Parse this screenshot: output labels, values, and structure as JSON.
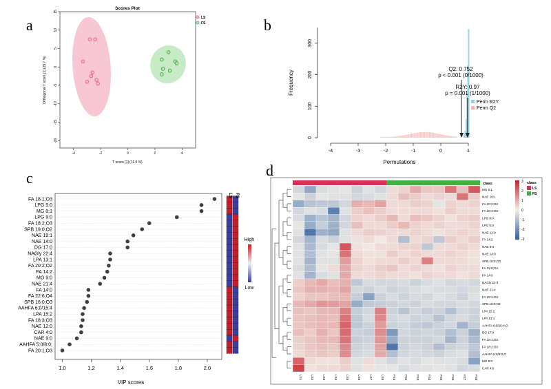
{
  "panel_labels": [
    "a",
    "b",
    "c",
    "d"
  ],
  "chart_data": [
    {
      "type": "scatter",
      "panel": "a",
      "title": "Scores Plot",
      "xlabel": "T score [1] (11.9 %)",
      "ylabel": "Orthogonal T score [1] (29.7 %)",
      "xlim": [
        -5,
        5
      ],
      "ylim": [
        -22,
        15
      ],
      "xticks": [
        "-4",
        "-2",
        "0",
        "2",
        "4"
      ],
      "yticks": [
        "-20",
        "-15",
        "-10",
        "-5",
        "0",
        "5",
        "10",
        "15"
      ],
      "legend": [
        "LS",
        "FS"
      ],
      "series": [
        {
          "name": "LS",
          "color": "#e05a7a",
          "fill": "#f4b6c4",
          "points": [
            [
              -2.4,
              7.5
            ],
            [
              -2.8,
              7.5
            ],
            [
              -3.3,
              1.5
            ],
            [
              -2.6,
              -1.5
            ],
            [
              -2.7,
              -2.5
            ],
            [
              -3.0,
              -4.0
            ],
            [
              -2.3,
              -3.5
            ],
            [
              -2.2,
              -4.5
            ]
          ]
        },
        {
          "name": "FS",
          "color": "#3a9a3a",
          "fill": "#b4e4b4",
          "points": [
            [
              3.0,
              4.0
            ],
            [
              2.5,
              2.0
            ],
            [
              3.5,
              1.5
            ],
            [
              2.6,
              -0.5
            ],
            [
              2.5,
              -2.0
            ],
            [
              3.1,
              -1.0
            ],
            [
              3.6,
              1.0
            ]
          ]
        }
      ]
    },
    {
      "type": "histogram",
      "panel": "b",
      "xlabel": "Permutations",
      "ylabel": "Frequency",
      "xlim": [
        -4,
        1
      ],
      "ylim": [
        0,
        350
      ],
      "xticks": [
        "-4",
        "-3",
        "-2",
        "-1",
        "0",
        "1"
      ],
      "yticks": [
        "0",
        "100",
        "200",
        "300"
      ],
      "annotations": [
        "Q2: 0.752",
        "p < 0.001 (0/1000)",
        "R2Y: 0.97",
        "p = 0.001 (1/1000)"
      ],
      "q2_value": 0.752,
      "r2y_value": 0.97,
      "legend": [
        "Perm R2Y",
        "Perm Q2"
      ]
    },
    {
      "type": "dot",
      "panel": "c",
      "xlabel": "VIP scores",
      "xlim": [
        0.95,
        2.1
      ],
      "xticks": [
        "1.0",
        "1.2",
        "1.4",
        "1.6",
        "1.8",
        "2.0"
      ],
      "features": [
        "FA 18:1;O3",
        "LPG 5:0",
        "MG 8:1",
        "LPG 9:0",
        "FA 18:2;O3",
        "SPB 19:0;O2",
        "NAE 19:1",
        "NAE 14:0",
        "DG 17:0",
        "NAGly 22:4",
        "LPA 13:1",
        "FA 20:2;O2",
        "FA 14:2",
        "MG 9:0",
        "NAE 21:4",
        "FA 14:0",
        "FA 22:6;O4",
        "SPB 16:0;O3",
        "AAHFA 6:0/15:4",
        "LPA 15:2",
        "FA 18:3;O3",
        "NAE 12:0",
        "CAR 4:0",
        "NAE 9:0",
        "AAHFA 5:0/8:0;",
        "FA 20:1;O3"
      ],
      "values": [
        2.05,
        1.96,
        1.96,
        1.79,
        1.6,
        1.55,
        1.49,
        1.45,
        1.45,
        1.33,
        1.33,
        1.32,
        1.31,
        1.29,
        1.26,
        1.18,
        1.18,
        1.17,
        1.15,
        1.14,
        1.14,
        1.13,
        1.13,
        1.1,
        1.05,
        1.0
      ],
      "side_columns": [
        "LS",
        "FS"
      ],
      "ls_high": [
        true,
        true,
        true,
        false,
        false,
        false,
        false,
        false,
        false,
        false,
        false,
        false,
        false,
        false,
        false,
        true,
        true,
        true,
        true,
        true,
        true,
        true,
        true,
        false,
        true,
        true
      ],
      "colorbar_labels": [
        "High",
        "Low"
      ]
    },
    {
      "type": "heatmap",
      "panel": "d",
      "class_label": "class",
      "legend": [
        "LS",
        "FS"
      ],
      "colorbar_ticks": [
        "3",
        "2",
        "1",
        "0",
        "-1",
        "-2",
        "-3"
      ],
      "columns": [
        "LS1",
        "LS2",
        "LS3",
        "LS4",
        "LS5",
        "LS6",
        "LS7",
        "LS8",
        "FS1",
        "FS2",
        "FS3",
        "FS4",
        "FS5",
        "FS6",
        "FS7",
        "FS8"
      ],
      "rows": [
        "MG 8:1",
        "NAE 19:1",
        "FA 20:2;O2",
        "FA 18:3;O3",
        "LPG 9:0",
        "LPG 5:0",
        "NAE 12:0",
        "FA 14:2",
        "NAE 9:0",
        "NAE 14:0",
        "SPB 19:0;O3",
        "FA 22:6;O4",
        "FA 14:0",
        "NAGly 22:4",
        "NAE 21:4",
        "FA 20:1;O3",
        "SPB 19:0;O2",
        "LPA 15:2",
        "LPA 13:1",
        "AAHFA 6:0/15:4;O",
        "DG 17:0",
        "FA 18:1;O3",
        "FA 18:2;O3",
        "AAHFA 5:0/8:0;O",
        "MG 9:0",
        "CAR 4:0"
      ],
      "values": [
        [
          -0.5,
          -1.5,
          -0.4,
          -0.3,
          -0.2,
          -0.6,
          -0.3,
          -0.5,
          0.3,
          0.4,
          1.0,
          0.6,
          0.6,
          1.8,
          0.7,
          2.2
        ],
        [
          -0.2,
          -0.6,
          -0.2,
          -0.3,
          -0.3,
          -0.5,
          -0.4,
          -0.3,
          0.3,
          0.7,
          0.5,
          0.3,
          0.4,
          0.3,
          1.8,
          0.5
        ],
        [
          -1.4,
          -0.9,
          -0.8,
          -0.8,
          -0.5,
          0.9,
          0.8,
          1.1,
          0.3,
          0.3,
          0.5,
          0.4,
          -0.2,
          0.4,
          0.3,
          0.4
        ],
        [
          -0.5,
          -0.3,
          -0.4,
          -2.3,
          -0.3,
          0.5,
          0.7,
          0.5,
          0.3,
          0.3,
          0.3,
          0.3,
          0.2,
          0.5,
          0.3,
          0.3
        ],
        [
          -0.4,
          -1.3,
          -0.9,
          -1.2,
          -0.5,
          0.4,
          0.3,
          0.5,
          0.8,
          0.3,
          0.7,
          0.6,
          0.4,
          0.2,
          0.4,
          0.5
        ],
        [
          -0.2,
          -1.4,
          -0.7,
          -1.3,
          -0.5,
          0.7,
          0.3,
          0.3,
          0.5,
          0.8,
          0.4,
          0.3,
          0.4,
          0.3,
          0.3,
          0.4
        ],
        [
          -0.3,
          -2.5,
          -1.3,
          -1.5,
          -0.3,
          0.3,
          0.5,
          0.4,
          0.3,
          0.3,
          0.4,
          0.3,
          0.2,
          0.3,
          0.4,
          0.3
        ],
        [
          -0.5,
          -1.2,
          -0.4,
          -0.6,
          -0.3,
          0.2,
          0.3,
          0.1,
          0.3,
          -1.0,
          0.3,
          0.4,
          -0.8,
          0.5,
          0.3,
          0.5
        ],
        [
          -0.3,
          -1.1,
          -0.4,
          -0.2,
          2.2,
          0.2,
          0.1,
          0.3,
          0.3,
          0.4,
          0.4,
          -0.8,
          0.3,
          0.3,
          0.4,
          0.3
        ],
        [
          -0.3,
          -1.0,
          -0.3,
          -0.2,
          1.8,
          0.3,
          0.2,
          0.2,
          0.5,
          0.3,
          0.4,
          0.3,
          0.3,
          0.4,
          0.3,
          0.2
        ],
        [
          -0.3,
          -1.2,
          -0.3,
          -0.3,
          1.2,
          0.4,
          0.2,
          0.3,
          0.3,
          0.5,
          0.3,
          1.6,
          0.3,
          0.3,
          0.3,
          0.2
        ],
        [
          -0.4,
          -1.0,
          -0.2,
          0.3,
          1.0,
          0.4,
          0.3,
          0.5,
          0.6,
          0.3,
          0.4,
          0.3,
          0.2,
          0.4,
          0.3,
          0.3
        ],
        [
          -0.3,
          -1.2,
          -0.4,
          -0.3,
          1.0,
          0.3,
          0.3,
          0.4,
          0.3,
          0.3,
          0.2,
          0.4,
          0.3,
          0.3,
          0.2,
          0.3
        ],
        [
          0.5,
          0.8,
          1.0,
          0.7,
          0.9,
          -0.8,
          -0.4,
          -0.5,
          -0.5,
          -0.4,
          -0.6,
          -0.4,
          -0.3,
          -0.5,
          -0.4,
          -0.5
        ],
        [
          0.6,
          0.9,
          0.9,
          0.8,
          1.1,
          -0.5,
          -0.6,
          -0.4,
          -0.6,
          -0.5,
          -0.4,
          -0.3,
          -0.4,
          -0.4,
          -0.5,
          -0.4
        ],
        [
          0.4,
          0.6,
          0.6,
          0.7,
          0.8,
          -0.7,
          -1.6,
          -0.6,
          -0.4,
          -0.6,
          -0.4,
          -0.5,
          -0.3,
          -0.4,
          -0.6,
          -0.3
        ],
        [
          0.8,
          1.0,
          1.3,
          1.2,
          1.1,
          -1.4,
          -0.8,
          -0.7,
          -0.6,
          -0.5,
          -0.6,
          -0.4,
          -0.5,
          -0.5,
          -0.4,
          -0.5
        ],
        [
          0.7,
          0.6,
          0.8,
          0.8,
          1.6,
          -0.7,
          -0.5,
          1.6,
          -0.6,
          -0.9,
          -0.5,
          -0.7,
          -0.6,
          -1.0,
          -0.5,
          -0.6
        ],
        [
          0.6,
          0.7,
          0.8,
          0.7,
          1.8,
          -0.8,
          -0.4,
          1.5,
          -0.5,
          -0.4,
          -0.6,
          -0.5,
          -0.9,
          -0.5,
          -0.4,
          -0.6
        ],
        [
          0.6,
          0.7,
          0.8,
          0.8,
          2.0,
          -0.8,
          -0.6,
          1.2,
          -0.6,
          -0.5,
          -0.7,
          -0.8,
          -0.6,
          -0.5,
          -1.2,
          -0.7
        ],
        [
          0.7,
          0.5,
          0.9,
          0.6,
          1.9,
          -0.6,
          -0.7,
          1.4,
          -1.8,
          -0.5,
          -0.6,
          -0.5,
          -0.6,
          -1.0,
          -0.6,
          -1.3
        ],
        [
          0.5,
          0.6,
          0.8,
          0.8,
          1.8,
          -0.7,
          -0.6,
          1.3,
          -1.4,
          -0.6,
          -0.6,
          -0.6,
          -0.5,
          -1.2,
          -0.6,
          -1.1
        ],
        [
          0.4,
          0.6,
          0.7,
          0.6,
          1.5,
          -0.6,
          -0.5,
          1.1,
          -2.5,
          -0.6,
          -0.5,
          -0.6,
          -1.0,
          -0.6,
          -0.5,
          -0.8
        ],
        [
          0.3,
          0.5,
          0.6,
          0.5,
          1.4,
          -0.5,
          -0.4,
          1.0,
          -1.0,
          -0.5,
          -0.4,
          -0.5,
          -0.6,
          -0.4,
          -0.3,
          -1.0
        ],
        [
          2.0,
          0.3,
          0.2,
          0.2,
          0.5,
          -0.3,
          0.3,
          -0.3,
          -0.5,
          -0.3,
          -0.4,
          -0.2,
          -0.3,
          -0.3,
          -0.4,
          -1.6
        ],
        [
          2.5,
          0.2,
          0.3,
          0.3,
          0.4,
          -0.3,
          0.2,
          -0.2,
          -0.2,
          -0.4,
          -0.3,
          -0.3,
          -0.2,
          -0.3,
          -0.5,
          -0.4
        ]
      ]
    }
  ],
  "colors": {
    "ls": "#d9305a",
    "fs": "#44b044",
    "low": "#2f5f9e",
    "mid": "#f2efe9",
    "high": "#c8202a",
    "r2y": "#8fcde4",
    "q2": "#f3b2b2",
    "dot": "#404040",
    "vip_low": "#3b3fa0",
    "vip_high": "#c81e28"
  }
}
